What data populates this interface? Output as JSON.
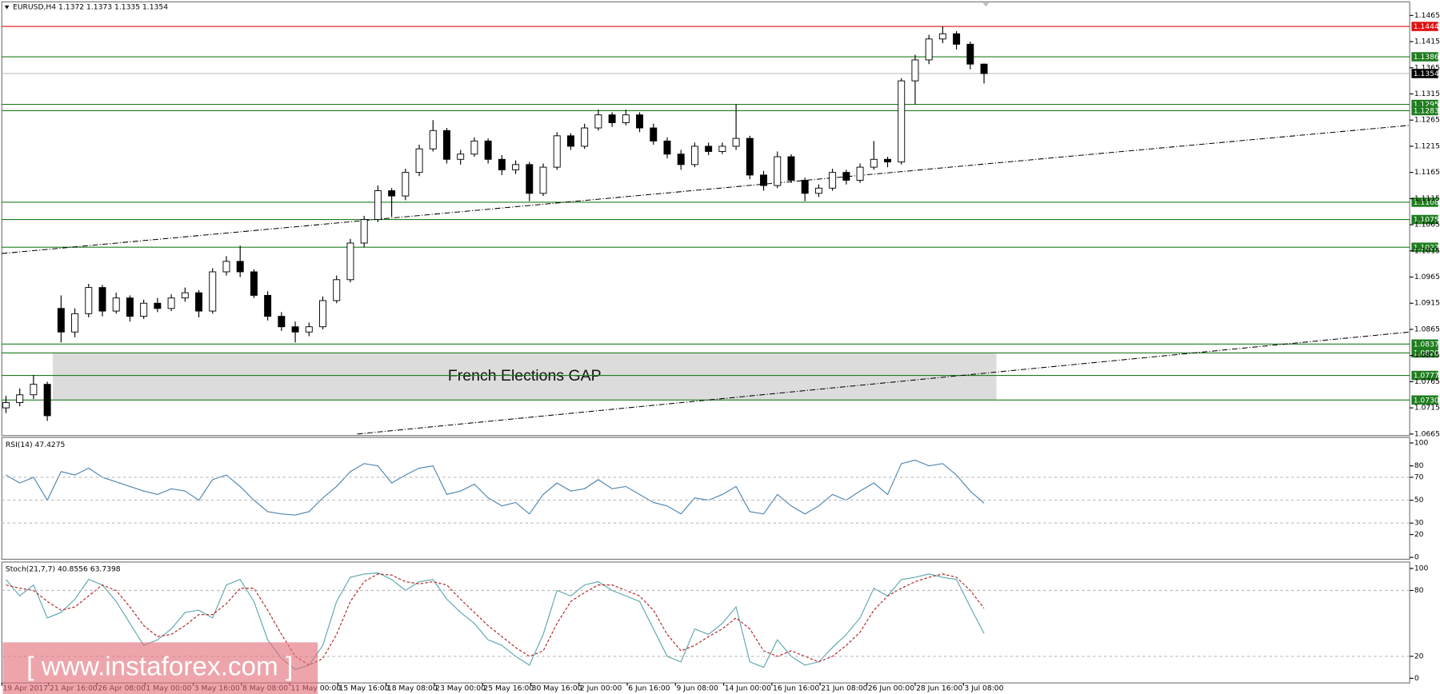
{
  "chart_data": [
    {
      "type": "candlestick",
      "title": "EURUSD,H4  1.1372 1.1373 1.1335 1.1354",
      "watermark": "[ www.instaforex.com ]",
      "up_color": "#ffffff",
      "down_color": "#000000",
      "ohlc": [
        [
          1.0715,
          1.0738,
          1.0705,
          1.0725
        ],
        [
          1.0725,
          1.0752,
          1.0718,
          1.074
        ],
        [
          1.074,
          1.0778,
          1.0732,
          1.076
        ],
        [
          1.076,
          1.0765,
          1.069,
          1.07
        ],
        [
          1.0905,
          1.093,
          1.084,
          1.086
        ],
        [
          1.086,
          1.0905,
          1.085,
          1.0895
        ],
        [
          1.0895,
          1.0952,
          1.0888,
          1.0945
        ],
        [
          1.0945,
          1.095,
          1.089,
          1.09
        ],
        [
          1.09,
          1.0935,
          1.0895,
          1.0925
        ],
        [
          1.0925,
          1.093,
          1.088,
          1.089
        ],
        [
          1.089,
          1.0922,
          1.0885,
          1.0915
        ],
        [
          1.0915,
          1.0925,
          1.0898,
          1.0905
        ],
        [
          1.0905,
          1.0932,
          1.09,
          1.0925
        ],
        [
          1.0925,
          1.0945,
          1.0918,
          1.0935
        ],
        [
          1.0935,
          1.094,
          1.0888,
          1.09
        ],
        [
          1.09,
          1.0982,
          1.0895,
          1.0975
        ],
        [
          1.0975,
          1.1005,
          1.0968,
          1.0995
        ],
        [
          1.0995,
          1.1025,
          1.0965,
          1.0975
        ],
        [
          1.0975,
          1.098,
          1.0925,
          1.093
        ],
        [
          1.093,
          1.0938,
          1.0882,
          1.089
        ],
        [
          1.089,
          1.0898,
          1.0862,
          1.087
        ],
        [
          1.087,
          1.088,
          1.084,
          1.086
        ],
        [
          1.086,
          1.0878,
          1.0852,
          1.087
        ],
        [
          1.087,
          1.0928,
          1.0865,
          1.092
        ],
        [
          1.092,
          1.0968,
          1.0915,
          1.096
        ],
        [
          1.096,
          1.1038,
          1.0955,
          1.103
        ],
        [
          1.103,
          1.1082,
          1.1022,
          1.1075
        ],
        [
          1.1075,
          1.114,
          1.107,
          1.113
        ],
        [
          1.113,
          1.1135,
          1.108,
          1.112
        ],
        [
          1.112,
          1.1172,
          1.1112,
          1.1165
        ],
        [
          1.1165,
          1.1218,
          1.1158,
          1.121
        ],
        [
          1.121,
          1.1265,
          1.1205,
          1.1245
        ],
        [
          1.1245,
          1.125,
          1.1182,
          1.119
        ],
        [
          1.119,
          1.1208,
          1.118,
          1.12
        ],
        [
          1.12,
          1.1232,
          1.1195,
          1.1225
        ],
        [
          1.1225,
          1.123,
          1.1182,
          1.119
        ],
        [
          1.119,
          1.1198,
          1.116,
          1.117
        ],
        [
          1.117,
          1.1188,
          1.1162,
          1.118
        ],
        [
          1.118,
          1.1185,
          1.111,
          1.1125
        ],
        [
          1.1125,
          1.1182,
          1.112,
          1.1175
        ],
        [
          1.1175,
          1.1242,
          1.117,
          1.1235
        ],
        [
          1.1235,
          1.124,
          1.1208,
          1.1215
        ],
        [
          1.1215,
          1.1258,
          1.121,
          1.125
        ],
        [
          1.125,
          1.1285,
          1.1245,
          1.1275
        ],
        [
          1.1275,
          1.128,
          1.1252,
          1.126
        ],
        [
          1.126,
          1.1285,
          1.1255,
          1.1275
        ],
        [
          1.1275,
          1.128,
          1.1242,
          1.125
        ],
        [
          1.125,
          1.1258,
          1.1218,
          1.1225
        ],
        [
          1.1225,
          1.1232,
          1.1192,
          1.12
        ],
        [
          1.12,
          1.1208,
          1.117,
          1.118
        ],
        [
          1.118,
          1.1222,
          1.1175,
          1.1215
        ],
        [
          1.1215,
          1.1222,
          1.1198,
          1.1205
        ],
        [
          1.1205,
          1.1222,
          1.12,
          1.1215
        ],
        [
          1.1215,
          1.1295,
          1.1208,
          1.123
        ],
        [
          1.123,
          1.1235,
          1.1152,
          1.116
        ],
        [
          1.116,
          1.1168,
          1.113,
          1.114
        ],
        [
          1.114,
          1.1205,
          1.1135,
          1.1195
        ],
        [
          1.1195,
          1.12,
          1.1145,
          1.115
        ],
        [
          1.115,
          1.1155,
          1.111,
          1.1125
        ],
        [
          1.1125,
          1.1142,
          1.1118,
          1.1135
        ],
        [
          1.1135,
          1.1172,
          1.113,
          1.1165
        ],
        [
          1.1165,
          1.117,
          1.1142,
          1.115
        ],
        [
          1.115,
          1.1182,
          1.1145,
          1.1175
        ],
        [
          1.1175,
          1.1225,
          1.117,
          1.119
        ],
        [
          1.119,
          1.1195,
          1.1175,
          1.1185
        ],
        [
          1.1185,
          1.1345,
          1.118,
          1.134
        ],
        [
          1.134,
          1.139,
          1.1295,
          1.138
        ],
        [
          1.138,
          1.1428,
          1.1372,
          1.142
        ],
        [
          1.142,
          1.1444,
          1.1412,
          1.143
        ],
        [
          1.143,
          1.1435,
          1.14,
          1.141
        ],
        [
          1.141,
          1.1415,
          1.1362,
          1.1372
        ],
        [
          1.1372,
          1.1373,
          1.1335,
          1.1354
        ]
      ],
      "xlim": [
        -0.3,
        101.9
      ],
      "xticks": [
        {
          "value": -0.3,
          "label": "19 Apr 2017"
        },
        {
          "value": 3.1,
          "label": "21 Apr 16:00"
        },
        {
          "value": 6.6,
          "label": "26 Apr 08:00"
        },
        {
          "value": 10.1,
          "label": "1 May 00:00"
        },
        {
          "value": 13.6,
          "label": "3 May 16:00"
        },
        {
          "value": 17.1,
          "label": "8 May 08:00"
        },
        {
          "value": 20.6,
          "label": "11 May 00:00"
        },
        {
          "value": 24.1,
          "label": "15 May 16:00"
        },
        {
          "value": 27.6,
          "label": "18 May 08:00"
        },
        {
          "value": 31.1,
          "label": "23 May 00:00"
        },
        {
          "value": 34.6,
          "label": "25 May 16:00"
        },
        {
          "value": 38.1,
          "label": "30 May 16:00"
        },
        {
          "value": 41.6,
          "label": "2 Jun 00:00"
        },
        {
          "value": 45.1,
          "label": "6 Jun 16:00"
        },
        {
          "value": 48.6,
          "label": "9 Jun 08:00"
        },
        {
          "value": 52.1,
          "label": "14 Jun 00:00"
        },
        {
          "value": 55.6,
          "label": "16 Jun 16:00"
        },
        {
          "value": 59.1,
          "label": "21 Jun 08:00"
        },
        {
          "value": 62.5,
          "label": "26 Jun 00:00"
        },
        {
          "value": 66,
          "label": "28 Jun 16:00"
        },
        {
          "value": 69.5,
          "label": "3 Jul 08:00"
        }
      ],
      "ylim": [
        1.0662,
        1.1491
      ],
      "yticks": [
        1.1465,
        1.1415,
        1.1365,
        1.1315,
        1.1265,
        1.1215,
        1.1165,
        1.1115,
        1.1065,
        1.1015,
        1.0965,
        1.0915,
        1.0865,
        1.0815,
        1.0765,
        1.0715,
        1.0665
      ],
      "levels": [
        {
          "value": 1.1444,
          "label": "1.1444",
          "color": "#e01010"
        },
        {
          "value": 1.1386,
          "label": "1.1386",
          "color": "#1e7d1e"
        },
        {
          "value": 1.1354,
          "label": "1.1354",
          "color": "#000000"
        },
        {
          "value": 1.1295,
          "label": "1.1295",
          "color": "#1e7d1e"
        },
        {
          "value": 1.1283,
          "label": "1.1283",
          "color": "#1e7d1e"
        },
        {
          "value": 1.1108,
          "label": "1.1108",
          "color": "#1e7d1e"
        },
        {
          "value": 1.1075,
          "label": "1.1075",
          "color": "#1e7d1e"
        },
        {
          "value": 1.1022,
          "label": "1.1022",
          "color": "#1e7d1e"
        },
        {
          "value": 1.0837,
          "label": "1.0837",
          "color": "#1e7d1e"
        },
        {
          "value": 1.082,
          "label": "1.0820",
          "color": "#1e7d1e"
        },
        {
          "value": 1.0777,
          "label": "1.0777",
          "color": "#1e7d1e"
        },
        {
          "value": 1.073,
          "label": "1.0730",
          "color": "#1e7d1e"
        }
      ],
      "trendlines": [
        {
          "start": [
            -0.3,
            1.101
          ],
          "end": [
            101.9,
            1.1255
          ]
        },
        {
          "start": [
            25.5,
            1.0665
          ],
          "end": [
            101.9,
            1.086
          ]
        }
      ],
      "zones": [
        {
          "label": "French Elections GAP",
          "start": 3.4,
          "end": 71.9,
          "from": 1.073,
          "to": 1.082,
          "color": "#dcdcdc"
        }
      ]
    },
    {
      "type": "line",
      "title": "RSI(14) 47.4275",
      "color": "#4f86b0",
      "values": [
        72,
        65,
        70,
        50,
        75,
        72,
        78,
        70,
        66,
        62,
        58,
        55,
        60,
        58,
        50,
        68,
        72,
        62,
        50,
        40,
        38,
        37,
        40,
        52,
        62,
        75,
        82,
        80,
        65,
        72,
        78,
        80,
        55,
        58,
        64,
        52,
        45,
        48,
        38,
        55,
        65,
        58,
        60,
        68,
        60,
        62,
        55,
        48,
        45,
        38,
        52,
        50,
        55,
        62,
        40,
        38,
        55,
        45,
        38,
        45,
        55,
        50,
        58,
        65,
        55,
        82,
        85,
        80,
        82,
        72,
        58,
        47.4275
      ],
      "ylim": [
        0,
        100
      ],
      "yticks": [
        100,
        80,
        70,
        50,
        30,
        20,
        0
      ],
      "levels": [
        70,
        50,
        30
      ]
    },
    {
      "type": "multi-line",
      "title": "Stoch(21,7,7) 40.8556 63.7398",
      "lines": [
        {
          "color": "#5fa8b0",
          "dashed": false,
          "values": [
            90,
            75,
            85,
            55,
            60,
            72,
            90,
            85,
            70,
            50,
            30,
            35,
            45,
            60,
            62,
            55,
            85,
            90,
            70,
            35,
            18,
            8,
            12,
            30,
            70,
            92,
            95,
            96,
            90,
            80,
            88,
            90,
            72,
            60,
            50,
            35,
            30,
            20,
            12,
            40,
            80,
            75,
            85,
            88,
            80,
            75,
            70,
            45,
            20,
            15,
            45,
            40,
            50,
            65,
            15,
            10,
            35,
            20,
            12,
            15,
            28,
            40,
            55,
            82,
            75,
            90,
            92,
            95,
            92,
            90,
            65,
            40.8556
          ]
        },
        {
          "color": "#b22222",
          "dashed": true,
          "values": [
            85,
            82,
            80,
            70,
            62,
            65,
            75,
            85,
            80,
            65,
            48,
            38,
            40,
            48,
            58,
            58,
            68,
            82,
            82,
            62,
            40,
            20,
            12,
            18,
            40,
            70,
            88,
            95,
            94,
            88,
            86,
            88,
            85,
            72,
            60,
            48,
            38,
            28,
            20,
            25,
            50,
            70,
            78,
            85,
            85,
            80,
            75,
            62,
            40,
            25,
            30,
            38,
            45,
            55,
            45,
            25,
            20,
            25,
            20,
            15,
            20,
            30,
            42,
            62,
            75,
            82,
            88,
            92,
            95,
            92,
            80,
            63.7398
          ]
        }
      ],
      "ylim": [
        0,
        100
      ],
      "yticks": [
        100,
        80,
        20,
        0
      ],
      "levels": [
        80,
        20
      ]
    }
  ]
}
